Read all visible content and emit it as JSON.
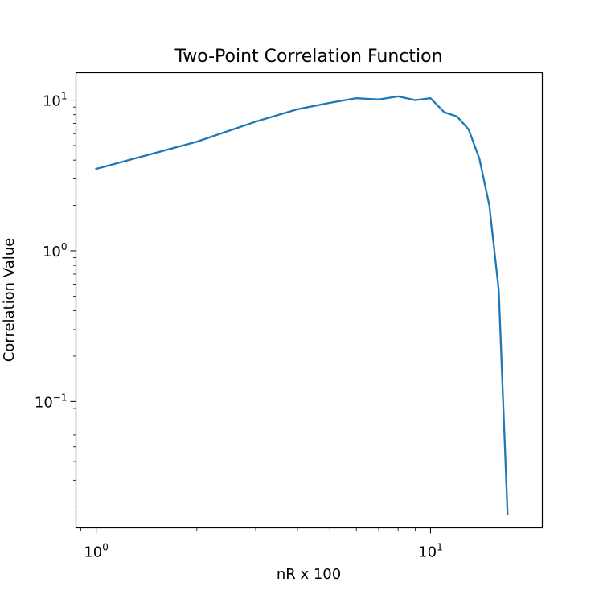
{
  "chart_data": {
    "type": "line",
    "title": "Two-Point Correlation Function",
    "xlabel": "nR x 100",
    "ylabel": "Correlation Value",
    "xscale": "log",
    "yscale": "log",
    "xlim": [
      0.87,
      21.6
    ],
    "ylim": [
      0.0145,
      15.2
    ],
    "grid": false,
    "colors": {
      "line": "#1f77b4",
      "axes": "#000000"
    },
    "x_ticks": [
      {
        "value": 1,
        "base": "10",
        "exp": "0"
      },
      {
        "value": 10,
        "base": "10",
        "exp": "1"
      }
    ],
    "y_ticks": [
      {
        "value": 0.1,
        "base": "10",
        "exp": "−1"
      },
      {
        "value": 1,
        "base": "10",
        "exp": "0"
      },
      {
        "value": 10,
        "base": "10",
        "exp": "1"
      }
    ],
    "series": [
      {
        "x": [
          1,
          2,
          3,
          4,
          5,
          6,
          7,
          8,
          9,
          10,
          11,
          12,
          13,
          14,
          15,
          16,
          17
        ],
        "y": [
          3.5,
          5.3,
          7.2,
          8.7,
          9.6,
          10.3,
          10.1,
          10.6,
          10.0,
          10.3,
          8.3,
          7.8,
          6.4,
          4.1,
          2.0,
          0.55,
          0.018
        ]
      }
    ]
  }
}
